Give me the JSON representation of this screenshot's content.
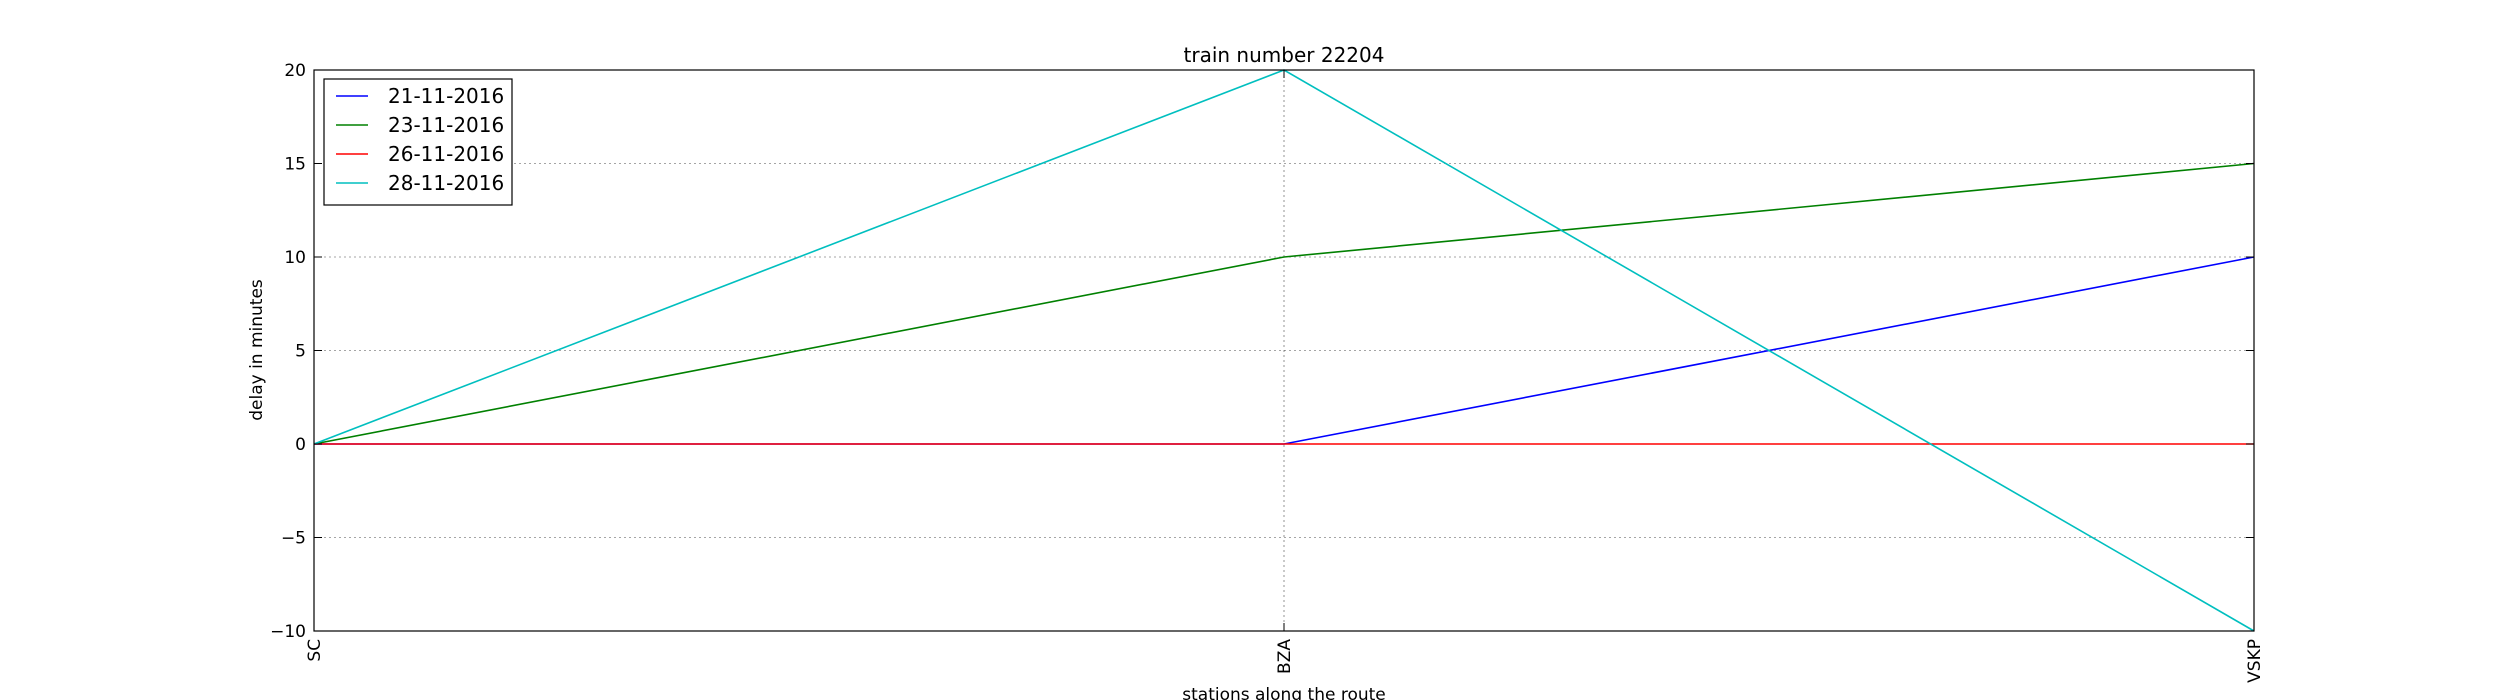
{
  "chart_data": {
    "type": "line",
    "title": "train number 22204",
    "xlabel": "stations along the route",
    "ylabel": "delay in minutes",
    "categories": [
      "SC",
      "BZA",
      "VSKP"
    ],
    "ylim": [
      -10,
      20
    ],
    "yticks": [
      -10,
      -5,
      0,
      5,
      10,
      15,
      20
    ],
    "grid": true,
    "legend_position": "top-left",
    "series": [
      {
        "name": "21-11-2016",
        "color": "#0000ff",
        "values": [
          0,
          0,
          10
        ]
      },
      {
        "name": "23-11-2016",
        "color": "#008000",
        "values": [
          0,
          10,
          15
        ]
      },
      {
        "name": "26-11-2016",
        "color": "#ff0000",
        "values": [
          0,
          0,
          0
        ]
      },
      {
        "name": "28-11-2016",
        "color": "#00bfbf",
        "values": [
          0,
          20,
          -10
        ]
      }
    ]
  }
}
